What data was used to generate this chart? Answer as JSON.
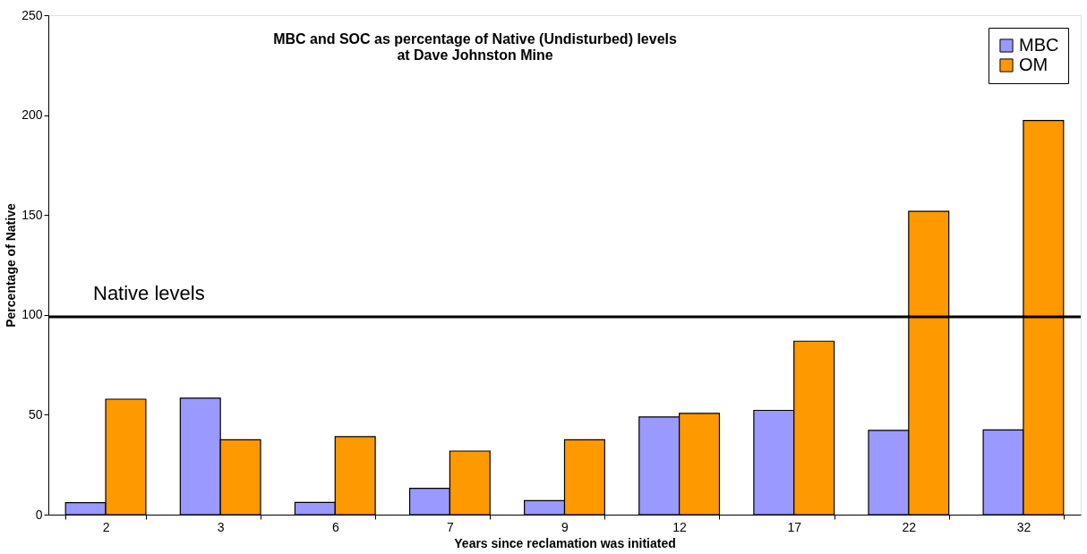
{
  "chart_data": {
    "type": "bar",
    "title": [
      "MBC and SOC as percentage of Native (Undisturbed) levels",
      "at Dave Johnston Mine"
    ],
    "xlabel": "Years since reclamation was initiated",
    "ylabel": "Percentage of Native",
    "categories": [
      "2",
      "3",
      "6",
      "7",
      "9",
      "12",
      "17",
      "22",
      "32"
    ],
    "series": [
      {
        "name": "MBC",
        "color": "#9999ff",
        "values": [
          6.0,
          58.3,
          6.1,
          13.2,
          7.0,
          48.9,
          52.2,
          42.2,
          42.4
        ]
      },
      {
        "name": "OM",
        "color": "#ff9900",
        "values": [
          57.8,
          37.5,
          39,
          31.8,
          37.5,
          50.7,
          86.8,
          151.8,
          197.3
        ]
      }
    ],
    "ylim": [
      0,
      250
    ],
    "yticks": [
      0,
      50,
      100,
      150,
      200,
      250
    ],
    "ref_lines": [
      {
        "axis": "y",
        "value": 99,
        "label": "Native levels",
        "color": "#000000"
      }
    ],
    "legend": "top right",
    "grid": false
  }
}
